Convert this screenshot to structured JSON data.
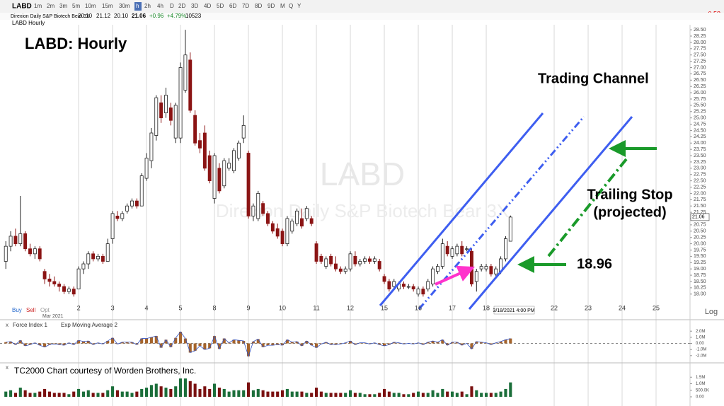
{
  "toolbar": {
    "symbol": "LABD",
    "intervals": [
      "1m",
      "2m",
      "3m",
      "5m",
      "10m",
      "15m",
      "30m",
      "h",
      "2h",
      "4h",
      "D",
      "2D",
      "3D",
      "4D",
      "5D",
      "6D",
      "7D",
      "8D",
      "9D",
      "M",
      "Q",
      "Y"
    ],
    "change": "-0.58"
  },
  "quote": {
    "name": "Direxion Daily S&P Biotech Bear 3X",
    "open": "20.10",
    "high": "21.12",
    "low": "20.10",
    "last": "21.06",
    "change": "+0.96",
    "change_pct": "+4.79%",
    "volume": "10523"
  },
  "chart_label": "LABD Hourly",
  "trade_buttons": [
    "Buy",
    "Sell",
    "Opt"
  ],
  "chart_data": {
    "type": "candlestick",
    "title": "LABD:  Hourly",
    "watermark": {
      "symbol": "LABD",
      "name": "Direxion Daily S&P Biotech Bear 3X"
    },
    "annotations": [
      "Trading Channel",
      "Trailing Stop",
      "(projected)",
      "18.96"
    ],
    "month_label": "Mar 2021",
    "cursor_label": "3/18/2021 4:00 PM",
    "last_price_tag": "21.06",
    "scale_label": "Log",
    "up_color": "#ffffff",
    "down_color": "#8b1414",
    "ohlc": [
      [
        19.3,
        20.1,
        19.0,
        19.9
      ],
      [
        19.9,
        20.5,
        19.7,
        20.3
      ],
      [
        20.3,
        20.6,
        19.9,
        20.0
      ],
      [
        20.0,
        21.9,
        19.9,
        20.4
      ],
      [
        20.4,
        20.5,
        19.7,
        19.8
      ],
      [
        19.8,
        20.0,
        19.5,
        19.6
      ],
      [
        19.6,
        19.9,
        19.4,
        19.8
      ],
      [
        19.8,
        19.9,
        19.3,
        19.4
      ],
      [
        18.9,
        19.0,
        18.4,
        18.6
      ],
      [
        18.6,
        18.8,
        18.3,
        18.5
      ],
      [
        18.5,
        18.7,
        18.3,
        18.4
      ],
      [
        18.4,
        18.5,
        18.1,
        18.3
      ],
      [
        18.3,
        18.4,
        18.0,
        18.1
      ],
      [
        18.1,
        18.3,
        18.0,
        18.2
      ],
      [
        18.2,
        18.3,
        17.9,
        18.0
      ],
      [
        18.2,
        19.1,
        18.2,
        19.0
      ],
      [
        19.0,
        19.3,
        18.8,
        19.2
      ],
      [
        19.2,
        19.7,
        19.0,
        19.6
      ],
      [
        19.6,
        19.7,
        19.3,
        19.4
      ],
      [
        19.4,
        19.6,
        19.3,
        19.5
      ],
      [
        19.5,
        19.6,
        19.2,
        19.3
      ],
      [
        19.3,
        20.2,
        19.3,
        20.0
      ],
      [
        20.2,
        21.3,
        20.0,
        21.2
      ],
      [
        21.1,
        21.3,
        20.9,
        21.0
      ],
      [
        21.0,
        21.3,
        20.9,
        21.2
      ],
      [
        21.3,
        21.6,
        21.2,
        21.5
      ],
      [
        21.5,
        21.8,
        21.4,
        21.7
      ],
      [
        21.7,
        21.8,
        21.4,
        21.5
      ],
      [
        21.5,
        22.8,
        21.5,
        22.7
      ],
      [
        22.6,
        23.6,
        22.5,
        23.4
      ],
      [
        23.3,
        24.6,
        23.0,
        24.4
      ],
      [
        24.3,
        25.9,
        24.1,
        25.8
      ],
      [
        25.6,
        25.9,
        24.8,
        25.0
      ],
      [
        25.2,
        26.2,
        25.0,
        25.9
      ],
      [
        25.4,
        25.6,
        24.7,
        24.9
      ],
      [
        24.2,
        25.6,
        24.0,
        25.5
      ],
      [
        24.2,
        27.2,
        24.0,
        27.0
      ],
      [
        26.1,
        28.5,
        26.0,
        27.5
      ],
      [
        27.3,
        27.6,
        25.2,
        25.3
      ],
      [
        25.1,
        25.3,
        23.9,
        24.0
      ],
      [
        24.1,
        24.4,
        23.6,
        23.8
      ],
      [
        24.4,
        24.7,
        22.9,
        23.0
      ],
      [
        23.5,
        23.7,
        22.4,
        22.5
      ],
      [
        21.8,
        23.6,
        21.6,
        23.5
      ],
      [
        23.0,
        23.2,
        22.0,
        22.1
      ],
      [
        22.3,
        23.4,
        22.2,
        23.3
      ],
      [
        23.0,
        23.4,
        22.9,
        23.2
      ],
      [
        22.9,
        23.8,
        22.8,
        23.7
      ],
      [
        23.4,
        24.1,
        23.3,
        24.0
      ],
      [
        24.2,
        25.1,
        24.0,
        24.7
      ],
      [
        23.6,
        23.7,
        21.0,
        21.1
      ],
      [
        21.1,
        21.6,
        20.9,
        21.5
      ],
      [
        21.0,
        22.1,
        20.9,
        22.0
      ],
      [
        21.6,
        21.7,
        21.1,
        21.2
      ],
      [
        21.2,
        21.3,
        20.7,
        20.8
      ],
      [
        20.8,
        20.9,
        20.4,
        20.5
      ],
      [
        20.6,
        20.8,
        20.2,
        20.3
      ],
      [
        20.5,
        20.6,
        19.9,
        20.0
      ],
      [
        20.0,
        21.1,
        19.9,
        21.0
      ],
      [
        20.5,
        21.0,
        20.4,
        20.9
      ],
      [
        20.8,
        21.4,
        20.7,
        21.3
      ],
      [
        21.0,
        21.4,
        20.6,
        20.7
      ],
      [
        21.0,
        21.5,
        20.9,
        21.4
      ],
      [
        21.0,
        21.1,
        20.7,
        20.8
      ],
      [
        20.0,
        20.1,
        19.2,
        19.3
      ],
      [
        19.5,
        19.6,
        19.2,
        19.3
      ],
      [
        19.1,
        19.5,
        19.0,
        19.4
      ],
      [
        19.5,
        19.6,
        19.1,
        19.2
      ],
      [
        19.2,
        19.5,
        18.9,
        19.0
      ],
      [
        19.0,
        19.1,
        18.8,
        18.9
      ],
      [
        18.9,
        19.1,
        18.8,
        19.0
      ],
      [
        19.0,
        19.7,
        18.9,
        19.6
      ],
      [
        19.5,
        19.7,
        19.1,
        19.2
      ],
      [
        19.2,
        19.4,
        19.1,
        19.3
      ],
      [
        19.3,
        19.5,
        19.2,
        19.4
      ],
      [
        19.4,
        19.5,
        19.2,
        19.3
      ],
      [
        19.3,
        19.5,
        19.2,
        19.4
      ],
      [
        19.3,
        19.4,
        18.9,
        19.0
      ],
      [
        18.7,
        18.8,
        18.4,
        18.5
      ],
      [
        18.5,
        18.6,
        18.1,
        18.2
      ],
      [
        18.3,
        18.6,
        18.2,
        18.5
      ],
      [
        18.2,
        18.5,
        18.1,
        18.4
      ],
      [
        18.4,
        18.5,
        18.2,
        18.3
      ],
      [
        18.3,
        18.4,
        18.2,
        18.3
      ],
      [
        18.3,
        18.4,
        18.1,
        18.2
      ],
      [
        18.0,
        18.3,
        17.9,
        18.2
      ],
      [
        18.2,
        18.3,
        17.9,
        18.0
      ],
      [
        18.2,
        18.6,
        18.1,
        18.5
      ],
      [
        18.4,
        19.1,
        18.3,
        19.0
      ],
      [
        18.9,
        19.2,
        18.8,
        19.1
      ],
      [
        19.1,
        20.2,
        19.0,
        20.0
      ],
      [
        19.9,
        20.1,
        19.5,
        19.6
      ],
      [
        19.5,
        19.9,
        19.4,
        19.8
      ],
      [
        19.6,
        20.0,
        19.5,
        19.9
      ],
      [
        19.9,
        20.1,
        19.5,
        19.6
      ],
      [
        19.8,
        19.9,
        19.7,
        19.8
      ],
      [
        19.7,
        19.8,
        18.3,
        18.4
      ],
      [
        18.5,
        19.0,
        18.1,
        18.9
      ],
      [
        19.0,
        19.2,
        18.9,
        19.1
      ],
      [
        19.0,
        19.2,
        18.9,
        19.1
      ],
      [
        19.1,
        19.2,
        18.7,
        18.8
      ],
      [
        18.8,
        19.1,
        18.7,
        19.0
      ],
      [
        18.9,
        19.5,
        18.8,
        19.4
      ],
      [
        19.4,
        20.3,
        19.3,
        20.2
      ],
      [
        20.1,
        21.12,
        20.1,
        21.06
      ]
    ],
    "xlim": [
      -1.2,
      141
    ],
    "xticks": [
      {
        "value": 15,
        "label": "2"
      },
      {
        "value": 22,
        "label": "3"
      },
      {
        "value": 29,
        "label": "4"
      },
      {
        "value": 36,
        "label": "5"
      },
      {
        "value": 43,
        "label": "8"
      },
      {
        "value": 50,
        "label": "9"
      },
      {
        "value": 57,
        "label": "10"
      },
      {
        "value": 64,
        "label": "11"
      },
      {
        "value": 71,
        "label": "12"
      },
      {
        "value": 78,
        "label": "15"
      },
      {
        "value": 85,
        "label": "16"
      },
      {
        "value": 92,
        "label": "17"
      },
      {
        "value": 99,
        "label": "18"
      },
      {
        "value": 113,
        "label": "22"
      },
      {
        "value": 120,
        "label": "23"
      },
      {
        "value": 127,
        "label": "24"
      },
      {
        "value": 134,
        "label": "25"
      }
    ],
    "ylim": [
      17.6,
      28.7
    ],
    "yticks": [
      {
        "value": 18,
        "label": "18.00"
      },
      {
        "value": 18.25,
        "label": "18.25"
      },
      {
        "value": 18.5,
        "label": "18.50"
      },
      {
        "value": 18.75,
        "label": "18.75"
      },
      {
        "value": 19,
        "label": "19.00"
      },
      {
        "value": 19.25,
        "label": "19.25"
      },
      {
        "value": 19.5,
        "label": "19.50"
      },
      {
        "value": 19.75,
        "label": "19.75"
      },
      {
        "value": 20,
        "label": "20.00"
      },
      {
        "value": 20.25,
        "label": "20.25"
      },
      {
        "value": 20.5,
        "label": "20.50"
      },
      {
        "value": 20.75,
        "label": "20.75"
      },
      {
        "value": 21,
        "label": "21.00"
      },
      {
        "value": 21.25,
        "label": "21.25"
      },
      {
        "value": 21.5,
        "label": "21.50"
      },
      {
        "value": 21.75,
        "label": "21.75"
      },
      {
        "value": 22,
        "label": "22.00"
      },
      {
        "value": 22.25,
        "label": "22.25"
      },
      {
        "value": 22.5,
        "label": "22.50"
      },
      {
        "value": 22.75,
        "label": "22.75"
      },
      {
        "value": 23,
        "label": "23.00"
      },
      {
        "value": 23.25,
        "label": "23.25"
      },
      {
        "value": 23.5,
        "label": "23.50"
      },
      {
        "value": 23.75,
        "label": "23.75"
      },
      {
        "value": 24,
        "label": "24.00"
      },
      {
        "value": 24.25,
        "label": "24.25"
      },
      {
        "value": 24.5,
        "label": "24.50"
      },
      {
        "value": 24.75,
        "label": "24.75"
      },
      {
        "value": 25,
        "label": "25.00"
      },
      {
        "value": 25.25,
        "label": "25.25"
      },
      {
        "value": 25.5,
        "label": "25.50"
      },
      {
        "value": 25.75,
        "label": "25.75"
      },
      {
        "value": 26,
        "label": "26.00"
      },
      {
        "value": 26.25,
        "label": "26.25"
      },
      {
        "value": 26.5,
        "label": "26.50"
      },
      {
        "value": 26.75,
        "label": "26.75"
      },
      {
        "value": 27,
        "label": "27.00"
      },
      {
        "value": 27.25,
        "label": "27.25"
      },
      {
        "value": 27.5,
        "label": "27.50"
      },
      {
        "value": 27.75,
        "label": "27.75"
      },
      {
        "value": 28,
        "label": "28.00"
      },
      {
        "value": 28.25,
        "label": "28.25"
      },
      {
        "value": 28.5,
        "label": "28.50"
      }
    ],
    "grid": true,
    "force_index": {
      "name": "Force Index 1",
      "average_name": "Exp Moving Average 2",
      "color": "#a5642c",
      "values": [
        0.2,
        0.3,
        -0.2,
        0.5,
        -0.4,
        -0.2,
        0.1,
        -0.3,
        -0.6,
        -0.2,
        -0.1,
        -0.2,
        -0.3,
        0.1,
        -0.2,
        0.5,
        0.3,
        0.4,
        -0.2,
        0.1,
        -0.1,
        0.4,
        0.9,
        -0.1,
        0.2,
        0.2,
        0.2,
        -0.2,
        0.8,
        0.8,
        1.0,
        1.2,
        -0.7,
        0.6,
        -0.6,
        0.9,
        1.9,
        0.8,
        -1.5,
        -1.2,
        -0.4,
        -1.0,
        -0.8,
        1.2,
        -0.9,
        0.8,
        0.1,
        0.6,
        0.5,
        0.4,
        -2.1,
        0.3,
        0.7,
        -0.6,
        -0.3,
        -0.3,
        -0.2,
        -0.3,
        0.6,
        0.2,
        0.3,
        -0.4,
        0.4,
        -0.3,
        -0.7,
        -0.1,
        0.2,
        -0.2,
        -0.2,
        -0.1,
        0.1,
        0.4,
        -0.2,
        0.1,
        0.1,
        -0.1,
        0.1,
        -0.2,
        -0.4,
        -0.2,
        0.2,
        0.1,
        -0.1,
        0.0,
        -0.1,
        0.1,
        -0.2,
        0.2,
        0.4,
        0.2,
        0.6,
        -0.3,
        0.2,
        0.2,
        -0.3,
        0.0,
        -0.9,
        0.3,
        0.2,
        0.1,
        -0.2,
        0.1,
        0.3,
        0.6,
        0.8
      ],
      "ylim": [
        -2.6,
        2.6
      ],
      "yticks": [
        {
          "value": 2,
          "label": "2.0M"
        },
        {
          "value": 1,
          "label": "1.0M"
        },
        {
          "value": 0,
          "label": "0.00"
        },
        {
          "value": -1,
          "label": "-1.0M"
        },
        {
          "value": -2,
          "label": "-2.0M"
        }
      ]
    },
    "volume": {
      "note": "TC2000 Chart courtesy of Worden Brothers, Inc.",
      "up_color": "#1b6e3a",
      "down_color": "#7a1010",
      "values": [
        0.4,
        0.5,
        0.3,
        0.7,
        0.5,
        0.3,
        0.3,
        0.4,
        0.6,
        0.4,
        0.3,
        0.3,
        0.3,
        0.2,
        0.4,
        0.6,
        0.4,
        0.5,
        0.3,
        0.3,
        0.3,
        0.5,
        0.8,
        0.5,
        0.4,
        0.4,
        0.3,
        0.4,
        0.6,
        0.7,
        0.9,
        1.0,
        0.8,
        0.7,
        0.6,
        0.8,
        1.4,
        1.4,
        1.2,
        1.0,
        0.6,
        0.8,
        0.6,
        1.0,
        0.7,
        0.6,
        0.4,
        0.5,
        0.5,
        0.5,
        1.1,
        0.5,
        0.6,
        0.5,
        0.4,
        0.4,
        0.4,
        0.5,
        0.6,
        0.4,
        0.4,
        0.4,
        0.3,
        0.3,
        0.7,
        0.4,
        0.3,
        0.3,
        0.3,
        0.3,
        0.3,
        0.5,
        0.3,
        0.3,
        0.2,
        0.2,
        0.2,
        0.3,
        0.6,
        0.4,
        0.3,
        0.3,
        0.2,
        0.2,
        0.3,
        0.4,
        0.3,
        0.3,
        0.5,
        0.3,
        0.6,
        0.4,
        0.4,
        0.3,
        0.4,
        0.2,
        0.8,
        0.5,
        0.3,
        0.3,
        0.3,
        0.3,
        0.4,
        0.6,
        1.1
      ],
      "ylim": [
        0,
        2.0
      ],
      "yticks": [
        {
          "value": 1.5,
          "label": "1.5M"
        },
        {
          "value": 1,
          "label": "1.0M"
        },
        {
          "value": 0.5,
          "label": "500.0K"
        },
        {
          "value": 0,
          "label": "0.00"
        }
      ]
    }
  }
}
